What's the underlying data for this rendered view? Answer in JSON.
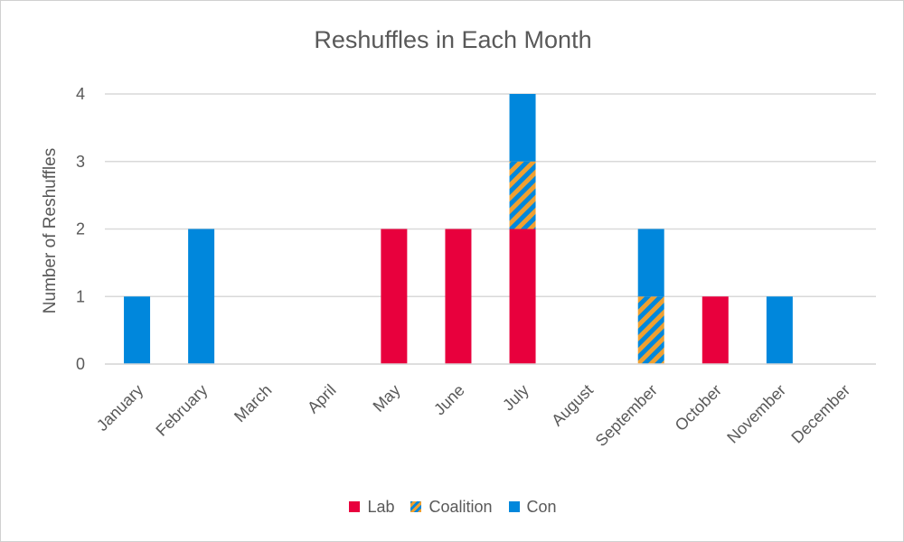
{
  "chart_data": {
    "type": "bar",
    "stacked": true,
    "title": "Reshuffles in Each Month",
    "ylabel": "Number of Reshuffles",
    "xlabel": "",
    "ylim": [
      0,
      4
    ],
    "yticks": [
      0,
      1,
      2,
      3,
      4
    ],
    "grid": true,
    "legend_position": "bottom",
    "categories": [
      "January",
      "February",
      "March",
      "April",
      "May",
      "June",
      "July",
      "August",
      "September",
      "October",
      "November",
      "December"
    ],
    "series": [
      {
        "name": "Lab",
        "color": "#e8003d",
        "pattern": "solid",
        "values": [
          0,
          0,
          0,
          0,
          2,
          2,
          2,
          0,
          0,
          1,
          0,
          0
        ]
      },
      {
        "name": "Coalition",
        "color": "#f0a030",
        "color2": "#0087dc",
        "pattern": "hatched",
        "values": [
          0,
          0,
          0,
          0,
          0,
          0,
          1,
          0,
          1,
          0,
          0,
          0
        ]
      },
      {
        "name": "Con",
        "color": "#0087dc",
        "pattern": "solid",
        "values": [
          1,
          2,
          0,
          0,
          0,
          0,
          1,
          0,
          1,
          0,
          1,
          0
        ]
      }
    ]
  }
}
